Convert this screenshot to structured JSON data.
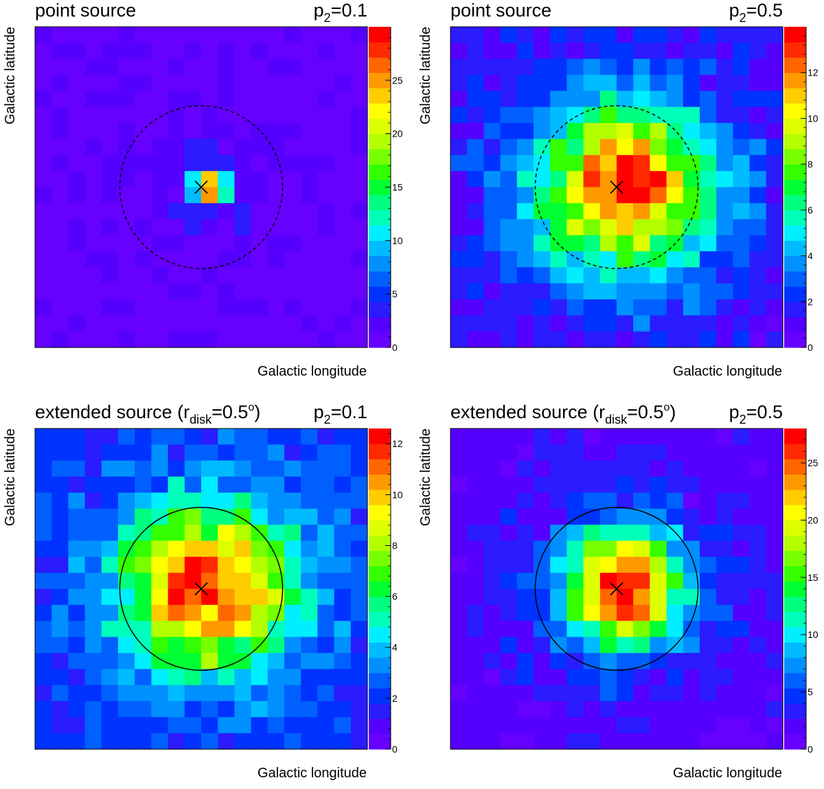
{
  "chart_data": [
    {
      "type": "heatmap",
      "title": "point source",
      "param_base": "p",
      "param_sub": "2",
      "param_eq": "=0.1",
      "xlabel": "Galactic longitude",
      "ylabel": "Galactic latitude",
      "zlim": [
        0,
        30
      ],
      "colorbar_ticks": [
        0,
        5,
        10,
        15,
        20,
        25
      ],
      "grid_size": 20,
      "grid_on": false,
      "background_value": 1,
      "peak_value": 28,
      "core_sigma": 0.7,
      "halo_amplitude": 2.5,
      "halo_sigma": 3.0,
      "halo_cutoff": 1.4,
      "circle_style": "dashed",
      "circle_radius_cells": 4.9,
      "marker": "x"
    },
    {
      "type": "heatmap",
      "title": "point source",
      "param_base": "p",
      "param_sub": "2",
      "param_eq": "=0.5",
      "xlabel": "Galactic longitude",
      "ylabel": "Galactic latitude",
      "zlim": [
        0,
        14
      ],
      "colorbar_ticks": [
        0,
        2,
        4,
        6,
        8,
        10,
        12
      ],
      "grid_size": 20,
      "grid_on": false,
      "background_value": 0.9,
      "peak_value": 11,
      "core_sigma": 3.3,
      "halo_amplitude": 2.2,
      "halo_sigma": 7.5,
      "halo_cutoff": 1.7,
      "circle_style": "dashed",
      "circle_radius_cells": 4.9,
      "marker": "x"
    },
    {
      "type": "heatmap",
      "title_main": "extended source (r",
      "title_sub": "disk",
      "title_rest": "=0.5",
      "title_sup": "o",
      "title_close": ")",
      "param_base": "p",
      "param_sub": "2",
      "param_eq": "=0.1",
      "xlabel": "Galactic longitude",
      "ylabel": "Galactic latitude",
      "zlim": [
        0,
        12.6
      ],
      "colorbar_ticks": [
        0,
        2,
        4,
        6,
        8,
        10,
        12
      ],
      "grid_size": 20,
      "grid_on": false,
      "background_value": 1.6,
      "peak_value": 9.0,
      "core_sigma": 3.3,
      "halo_amplitude": 1.8,
      "halo_sigma": 7.5,
      "halo_cutoff": 1.7,
      "circle_style": "solid",
      "circle_radius_cells": 4.9,
      "marker": "x"
    },
    {
      "type": "heatmap",
      "title_main": "extended source (r",
      "title_sub": "disk",
      "title_rest": "=0.5",
      "title_sup": "o",
      "title_close": ")",
      "param_base": "p",
      "param_sub": "2",
      "param_eq": "=0.5",
      "xlabel": "Galactic longitude",
      "ylabel": "Galactic latitude",
      "zlim": [
        0,
        28
      ],
      "colorbar_ticks": [
        0,
        5,
        10,
        15,
        20,
        25
      ],
      "grid_size": 20,
      "grid_on": false,
      "background_value": 1.5,
      "peak_value": 24.5,
      "core_sigma": 2.4,
      "halo_amplitude": 3.5,
      "halo_sigma": 5.5,
      "halo_cutoff": 1.7,
      "circle_style": "solid",
      "circle_radius_cells": 4.9,
      "marker": "x"
    }
  ]
}
